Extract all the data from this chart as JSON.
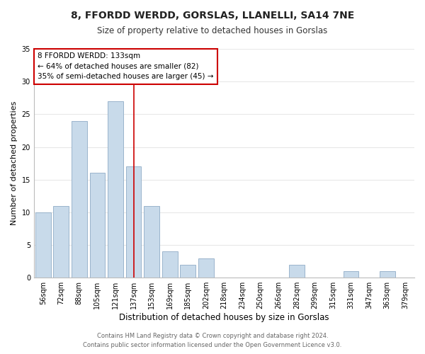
{
  "title": "8, FFORDD WERDD, GORSLAS, LLANELLI, SA14 7NE",
  "subtitle": "Size of property relative to detached houses in Gorslas",
  "xlabel": "Distribution of detached houses by size in Gorslas",
  "ylabel": "Number of detached properties",
  "footer_line1": "Contains HM Land Registry data © Crown copyright and database right 2024.",
  "footer_line2": "Contains public sector information licensed under the Open Government Licence v3.0.",
  "bar_labels": [
    "56sqm",
    "72sqm",
    "88sqm",
    "105sqm",
    "121sqm",
    "137sqm",
    "153sqm",
    "169sqm",
    "185sqm",
    "202sqm",
    "218sqm",
    "234sqm",
    "250sqm",
    "266sqm",
    "282sqm",
    "299sqm",
    "315sqm",
    "331sqm",
    "347sqm",
    "363sqm",
    "379sqm"
  ],
  "bar_values": [
    10,
    11,
    24,
    16,
    27,
    17,
    11,
    4,
    2,
    3,
    0,
    0,
    0,
    0,
    2,
    0,
    0,
    1,
    0,
    1,
    0
  ],
  "bar_color": "#c8daea",
  "bar_edge_color": "#9ab4cc",
  "highlight_bar_index": 5,
  "highlight_line_color": "#cc0000",
  "ylim": [
    0,
    35
  ],
  "yticks": [
    0,
    5,
    10,
    15,
    20,
    25,
    30,
    35
  ],
  "annotation_title": "8 FFORDD WERDD: 133sqm",
  "annotation_line1": "← 64% of detached houses are smaller (82)",
  "annotation_line2": "35% of semi-detached houses are larger (45) →",
  "annotation_box_color": "#ffffff",
  "annotation_box_edge_color": "#cc0000",
  "background_color": "#ffffff",
  "grid_color": "#e8e8e8",
  "title_fontsize": 10,
  "subtitle_fontsize": 8.5,
  "ylabel_fontsize": 8,
  "xlabel_fontsize": 8.5,
  "tick_fontsize": 7,
  "annotation_fontsize": 7.5,
  "footer_fontsize": 6
}
